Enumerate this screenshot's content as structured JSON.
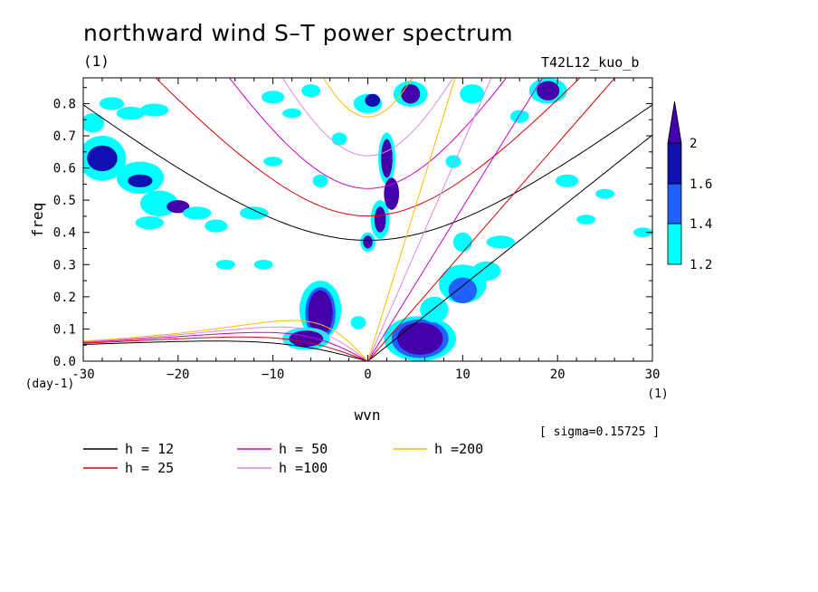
{
  "title": "northward wind S–T power spectrum",
  "subtitle_left": "(1)",
  "subtitle_right": "T42L12_kuo_b",
  "sigma_note": "[ sigma=0.15725 ]",
  "chart_data": {
    "type": "heatmap",
    "xlabel": "wvn",
    "ylabel": "freq",
    "x_unit": "(1)",
    "y_unit": "(day-1)",
    "xlim": [
      -30,
      30
    ],
    "ylim": [
      0,
      0.88
    ],
    "x_ticks": [
      -30,
      -20,
      -10,
      0,
      10,
      20,
      30
    ],
    "x_tick_labels": [
      "-30",
      "−20",
      "−10",
      "0",
      "10",
      "20",
      "30"
    ],
    "y_ticks": [
      0,
      0.1,
      0.2,
      0.3,
      0.4,
      0.5,
      0.6,
      0.7,
      0.8
    ],
    "y_tick_labels": [
      "0.0",
      "0.1",
      "0.2",
      "0.3",
      "0.4",
      "0.5",
      "0.6",
      "0.7",
      "0.8"
    ],
    "colorbar": {
      "levels": [
        1.2,
        1.4,
        1.6,
        2
      ],
      "labels": [
        "1.2",
        "1.4",
        "1.6",
        "2"
      ],
      "colors": [
        "#00ffff",
        "#2060ff",
        "#1010b0",
        "#4400aa"
      ]
    },
    "dispersion_curves": [
      {
        "label": "h = 12",
        "equivalent_depth": 12,
        "color": "#000000"
      },
      {
        "label": "h = 25",
        "equivalent_depth": 25,
        "color": "#dd0000"
      },
      {
        "label": "h = 50",
        "equivalent_depth": 50,
        "color": "#cc00cc"
      },
      {
        "label": "h =100",
        "equivalent_depth": 100,
        "color": "#dd88dd"
      },
      {
        "label": "h =200",
        "equivalent_depth": 200,
        "color": "#ffbb00"
      }
    ],
    "power_regions": [
      {
        "x": [
          -6,
          -3
        ],
        "y": [
          0.05,
          0.25
        ],
        "level": 2
      },
      {
        "x": [
          3,
          8
        ],
        "y": [
          0.0,
          0.15
        ],
        "level": 2
      },
      {
        "x": [
          1,
          3
        ],
        "y": [
          0.3,
          0.75
        ],
        "level": 2
      },
      {
        "x": [
          17,
          21
        ],
        "y": [
          0.8,
          0.88
        ],
        "level": 2
      },
      {
        "x": [
          -30,
          -20
        ],
        "y": [
          0.45,
          0.75
        ],
        "level": 1.6
      },
      {
        "x": [
          -15,
          -5
        ],
        "y": [
          0.3,
          0.45
        ],
        "level": 1.2
      },
      {
        "x": [
          10,
          20
        ],
        "y": [
          0.1,
          0.35
        ],
        "level": 1.4
      }
    ]
  }
}
